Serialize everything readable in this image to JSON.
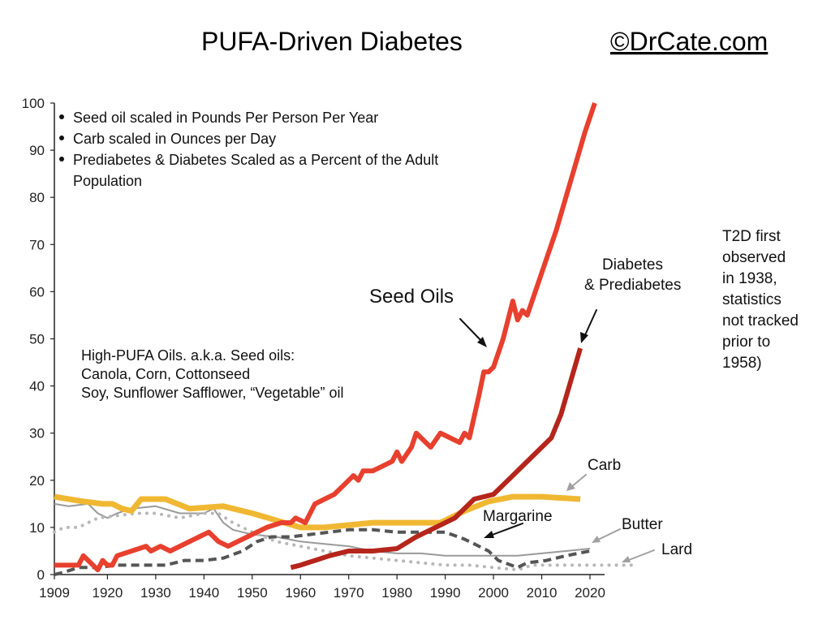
{
  "chart_data": {
    "type": "line",
    "title": "PUFA-Driven Diabetes",
    "copyright": "©DrCate.com",
    "ylim": [
      0,
      100
    ],
    "xlim": [
      1909,
      2020
    ],
    "y_ticks": [
      0,
      10,
      20,
      30,
      40,
      50,
      60,
      70,
      80,
      90,
      100
    ],
    "x_ticks": [
      "1909",
      "1920",
      "1930",
      "1940",
      "1950",
      "1960",
      "1970",
      "1980",
      "1990",
      "2000",
      "2010",
      "2020"
    ],
    "bullets": [
      "Seed oil scaled in Pounds Per Person Per Year",
      "Carb scaled in Ounces per Day",
      "Prediabetes & Diabetes Scaled as a Percent of the Adult",
      "Population"
    ],
    "seed_oil_note": [
      "High-PUFA Oils. a.k.a. Seed oils:",
      "Canola, Corn, Cottonseed",
      "Soy, Sunflower Safflower, “Vegetable” oil"
    ],
    "t2d_note": [
      "T2D first",
      "observed",
      "in 1938,",
      "statistics",
      "not tracked",
      "prior to",
      "1958)"
    ],
    "series": [
      {
        "name": "Seed Oils",
        "label_lines": [
          "Seed Oils"
        ],
        "color": "#e8402e",
        "style": "solid",
        "width": 6,
        "points": [
          [
            1909,
            2
          ],
          [
            1913,
            2
          ],
          [
            1914,
            2
          ],
          [
            1915,
            4
          ],
          [
            1917,
            2
          ],
          [
            1918,
            1
          ],
          [
            1919,
            3
          ],
          [
            1920,
            2
          ],
          [
            1921,
            2
          ],
          [
            1922,
            4
          ],
          [
            1925,
            5
          ],
          [
            1928,
            6
          ],
          [
            1929,
            5
          ],
          [
            1931,
            6
          ],
          [
            1933,
            5
          ],
          [
            1937,
            7
          ],
          [
            1939,
            8
          ],
          [
            1941,
            9
          ],
          [
            1943,
            7
          ],
          [
            1945,
            6
          ],
          [
            1947,
            7
          ],
          [
            1949,
            8
          ],
          [
            1951,
            9
          ],
          [
            1953,
            10
          ],
          [
            1956,
            11
          ],
          [
            1958,
            11
          ],
          [
            1959,
            12
          ],
          [
            1961,
            11
          ],
          [
            1963,
            15
          ],
          [
            1965,
            16
          ],
          [
            1967,
            17
          ],
          [
            1969,
            19
          ],
          [
            1971,
            21
          ],
          [
            1972,
            20
          ],
          [
            1973,
            22
          ],
          [
            1975,
            22
          ],
          [
            1977,
            23
          ],
          [
            1979,
            24
          ],
          [
            1980,
            26
          ],
          [
            1981,
            24
          ],
          [
            1983,
            27
          ],
          [
            1984,
            30
          ],
          [
            1986,
            28
          ],
          [
            1987,
            27
          ],
          [
            1989,
            30
          ],
          [
            1991,
            29
          ],
          [
            1993,
            28
          ],
          [
            1994,
            30
          ],
          [
            1995,
            29
          ],
          [
            1997,
            38
          ],
          [
            1998,
            43
          ],
          [
            1999,
            43
          ],
          [
            2000,
            44
          ],
          [
            2002,
            50
          ],
          [
            2004,
            58
          ],
          [
            2005,
            54
          ],
          [
            2006,
            56
          ],
          [
            2007,
            55
          ],
          [
            2009,
            61
          ],
          [
            2011,
            67
          ],
          [
            2013,
            73
          ],
          [
            2015,
            80
          ],
          [
            2017,
            87
          ],
          [
            2019,
            94
          ],
          [
            2021,
            100
          ]
        ]
      },
      {
        "name": "Diabetes & Prediabetes",
        "label_lines": [
          "Diabetes",
          "& Prediabetes"
        ],
        "color": "#b5251b",
        "style": "solid",
        "width": 6,
        "points": [
          [
            1958,
            1.5
          ],
          [
            1960,
            2
          ],
          [
            1963,
            3
          ],
          [
            1966,
            4
          ],
          [
            1970,
            5
          ],
          [
            1975,
            5
          ],
          [
            1980,
            5.5
          ],
          [
            1984,
            8
          ],
          [
            1988,
            10
          ],
          [
            1992,
            12
          ],
          [
            1996,
            16
          ],
          [
            2000,
            17
          ],
          [
            2004,
            21
          ],
          [
            2008,
            25
          ],
          [
            2012,
            29
          ],
          [
            2014,
            34
          ],
          [
            2016,
            41
          ],
          [
            2018,
            48
          ]
        ]
      },
      {
        "name": "Carb",
        "label_lines": [
          "Carb"
        ],
        "color": "#f0b832",
        "style": "solid",
        "width": 7,
        "points": [
          [
            1909,
            16.5
          ],
          [
            1912,
            16
          ],
          [
            1915,
            15.5
          ],
          [
            1919,
            15
          ],
          [
            1921,
            15
          ],
          [
            1923,
            14
          ],
          [
            1925,
            13.5
          ],
          [
            1927,
            16
          ],
          [
            1932,
            16
          ],
          [
            1937,
            14
          ],
          [
            1944,
            14.5
          ],
          [
            1950,
            13
          ],
          [
            1955,
            11.5
          ],
          [
            1960,
            10
          ],
          [
            1965,
            10
          ],
          [
            1970,
            10.5
          ],
          [
            1975,
            11
          ],
          [
            1980,
            11
          ],
          [
            1985,
            11
          ],
          [
            1989,
            11
          ],
          [
            1994,
            13.5
          ],
          [
            1999,
            15.5
          ],
          [
            2004,
            16.5
          ],
          [
            2010,
            16.5
          ],
          [
            2018,
            16
          ]
        ]
      },
      {
        "name": "Margarine",
        "label_lines": [
          "Margarine"
        ],
        "color": "#555555",
        "style": "dashed",
        "width": 4,
        "points": [
          [
            1909,
            0
          ],
          [
            1911,
            0.5
          ],
          [
            1914,
            1.5
          ],
          [
            1918,
            1.5
          ],
          [
            1922,
            2
          ],
          [
            1926,
            2
          ],
          [
            1932,
            2
          ],
          [
            1936,
            3
          ],
          [
            1940,
            3
          ],
          [
            1944,
            3.5
          ],
          [
            1948,
            5
          ],
          [
            1951,
            7
          ],
          [
            1954,
            8
          ],
          [
            1958,
            8
          ],
          [
            1962,
            8.5
          ],
          [
            1966,
            9
          ],
          [
            1970,
            9.5
          ],
          [
            1975,
            9.5
          ],
          [
            1980,
            9
          ],
          [
            1985,
            9
          ],
          [
            1990,
            9
          ],
          [
            1994,
            7.5
          ],
          [
            1996,
            6.5
          ],
          [
            1999,
            5
          ],
          [
            2001,
            3
          ],
          [
            2005,
            1.5
          ],
          [
            2007,
            2.5
          ],
          [
            2011,
            3
          ],
          [
            2015,
            4
          ],
          [
            2020,
            5
          ]
        ]
      },
      {
        "name": "Butter",
        "label_lines": [
          "Butter"
        ],
        "color": "#9a9a9a",
        "style": "solid",
        "width": 2,
        "points": [
          [
            1909,
            15
          ],
          [
            1912,
            14.5
          ],
          [
            1916,
            15
          ],
          [
            1918,
            13
          ],
          [
            1920,
            12
          ],
          [
            1922,
            13
          ],
          [
            1925,
            14
          ],
          [
            1930,
            14.5
          ],
          [
            1935,
            13
          ],
          [
            1940,
            13
          ],
          [
            1942,
            14
          ],
          [
            1944,
            11
          ],
          [
            1946,
            9.5
          ],
          [
            1950,
            8.5
          ],
          [
            1955,
            8
          ],
          [
            1960,
            7
          ],
          [
            1965,
            6.5
          ],
          [
            1970,
            6
          ],
          [
            1975,
            5
          ],
          [
            1980,
            4.5
          ],
          [
            1985,
            4.5
          ],
          [
            1990,
            4
          ],
          [
            1995,
            4
          ],
          [
            2000,
            4
          ],
          [
            2005,
            4
          ],
          [
            2010,
            4.5
          ],
          [
            2015,
            5
          ],
          [
            2020,
            5.5
          ]
        ]
      },
      {
        "name": "Lard",
        "label_lines": [
          "Lard"
        ],
        "color": "#b8b8b8",
        "style": "dotted",
        "width": 4,
        "points": [
          [
            1909,
            9
          ],
          [
            1911,
            10
          ],
          [
            1914,
            10
          ],
          [
            1918,
            12
          ],
          [
            1922,
            12.5
          ],
          [
            1926,
            13
          ],
          [
            1930,
            13
          ],
          [
            1935,
            12
          ],
          [
            1940,
            13
          ],
          [
            1943,
            13
          ],
          [
            1946,
            11
          ],
          [
            1950,
            9
          ],
          [
            1955,
            7
          ],
          [
            1960,
            6
          ],
          [
            1965,
            5
          ],
          [
            1970,
            4
          ],
          [
            1975,
            3.5
          ],
          [
            1980,
            3
          ],
          [
            1985,
            2.5
          ],
          [
            1990,
            2
          ],
          [
            1995,
            2
          ],
          [
            2000,
            1.5
          ],
          [
            2005,
            1
          ],
          [
            2008,
            2
          ],
          [
            2015,
            2
          ],
          [
            2020,
            2
          ],
          [
            2030,
            2
          ]
        ]
      }
    ]
  }
}
